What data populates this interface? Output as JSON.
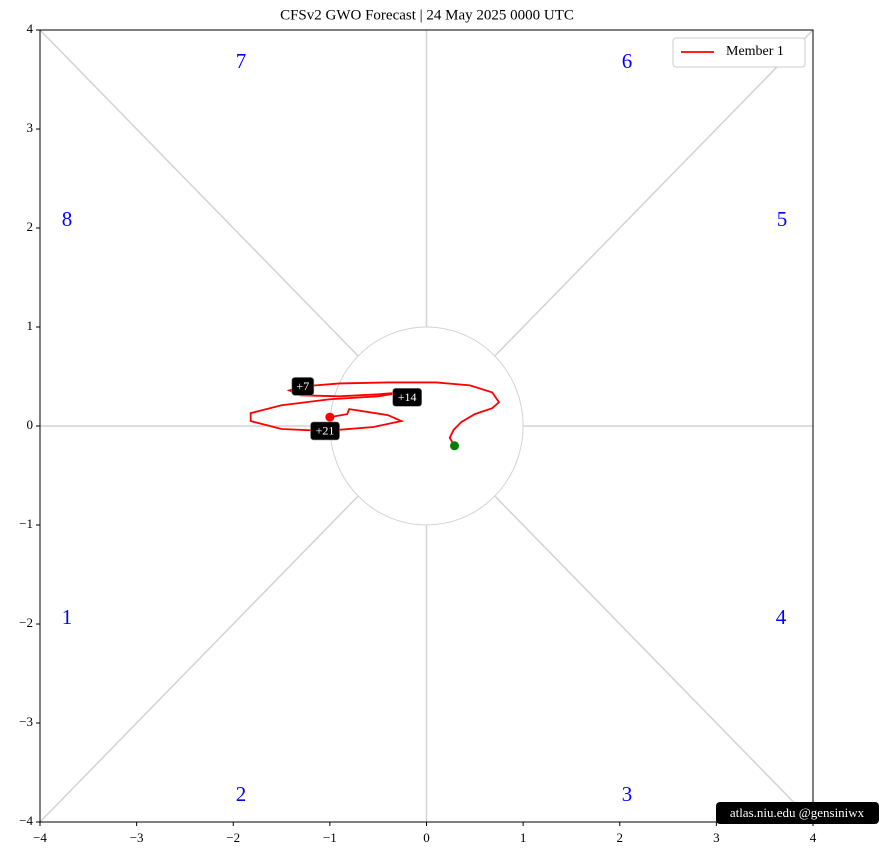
{
  "chart_data": {
    "type": "line",
    "title": "CFSv2 GWO Forecast   |   24  May  2025 0000 UTC",
    "x": [
      0.29,
      0.24,
      0.28,
      0.36,
      0.5,
      0.68,
      0.75,
      0.68,
      0.45,
      0.1,
      -0.4,
      -0.9,
      -1.28,
      -1.42,
      -1.3,
      -0.9,
      -0.5,
      -0.25,
      -0.5,
      -1.0,
      -1.5,
      -1.82,
      -1.82,
      -1.5,
      -1.05,
      -0.55,
      -0.26,
      -0.4,
      -0.8,
      -0.82,
      -1.0
    ],
    "series": [
      {
        "name": "Member 1",
        "color": "#ff0000",
        "values": [
          -0.2,
          -0.12,
          -0.04,
          0.04,
          0.12,
          0.18,
          0.24,
          0.34,
          0.41,
          0.44,
          0.44,
          0.43,
          0.4,
          0.36,
          0.31,
          0.3,
          0.32,
          0.34,
          0.3,
          0.27,
          0.21,
          0.13,
          0.05,
          -0.03,
          -0.05,
          -0.01,
          0.05,
          0.11,
          0.17,
          0.12,
          0.09
        ]
      }
    ],
    "annotations": [
      {
        "text": "+7",
        "x": -1.28,
        "y": 0.4
      },
      {
        "text": "+14",
        "x": -0.2,
        "y": 0.29
      },
      {
        "text": "+21",
        "x": -1.05,
        "y": -0.05
      }
    ],
    "phase_labels": [
      "1",
      "2",
      "3",
      "4",
      "5",
      "6",
      "7",
      "8"
    ],
    "start_color": "#008000",
    "end_color": "#ff0000",
    "xlim": [
      -4,
      4
    ],
    "ylim": [
      -4,
      4
    ],
    "xticks": [
      {
        "value": -4,
        "label": "−4"
      },
      {
        "value": -3,
        "label": "−3"
      },
      {
        "value": -2,
        "label": "−2"
      },
      {
        "value": -1,
        "label": "−1"
      },
      0,
      1,
      2,
      3,
      4
    ],
    "yticks": [
      {
        "value": -4,
        "label": "−4"
      },
      {
        "value": -3,
        "label": "−3"
      },
      {
        "value": -2,
        "label": "−2"
      },
      {
        "value": -1,
        "label": "−1"
      },
      0,
      1,
      2,
      3,
      4
    ],
    "legend": "upper right",
    "watermark": "atlas.niu.edu  @gensiniwx"
  }
}
